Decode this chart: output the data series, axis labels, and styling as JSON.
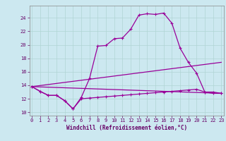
{
  "title": "",
  "xlabel": "Windchill (Refroidissement éolien,°C)",
  "bg_color": "#cce8f0",
  "grid_color": "#b0d4d4",
  "line_color": "#990099",
  "x_ticks": [
    0,
    1,
    2,
    3,
    4,
    5,
    6,
    7,
    8,
    9,
    10,
    11,
    12,
    13,
    14,
    15,
    16,
    17,
    18,
    19,
    20,
    21,
    22,
    23
  ],
  "y_ticks": [
    10,
    12,
    14,
    16,
    18,
    20,
    22,
    24
  ],
  "xlim": [
    -0.3,
    23.3
  ],
  "ylim": [
    9.5,
    25.8
  ],
  "line1_x": [
    0,
    1,
    2,
    3,
    4,
    5,
    6,
    7,
    8,
    9,
    10,
    11,
    12,
    13,
    14,
    15,
    16,
    17,
    18,
    19,
    20,
    21,
    22,
    23
  ],
  "line1_y": [
    13.8,
    13.1,
    12.5,
    12.5,
    11.7,
    10.5,
    12.2,
    15.0,
    19.8,
    19.9,
    20.9,
    21.0,
    22.3,
    24.4,
    24.6,
    24.5,
    24.7,
    23.2,
    19.5,
    17.4,
    15.8,
    13.0,
    13.0,
    12.8
  ],
  "line2_x": [
    0,
    23
  ],
  "line2_y": [
    13.8,
    12.8
  ],
  "line3_x": [
    0,
    23
  ],
  "line3_y": [
    13.8,
    17.4
  ],
  "line4_x": [
    0,
    1,
    2,
    3,
    4,
    5,
    6,
    7,
    8,
    9,
    10,
    11,
    12,
    13,
    14,
    15,
    16,
    17,
    18,
    19,
    20,
    21,
    22,
    23
  ],
  "line4_y": [
    13.8,
    13.1,
    12.5,
    12.5,
    11.7,
    10.5,
    12.0,
    12.1,
    12.2,
    12.3,
    12.4,
    12.5,
    12.6,
    12.7,
    12.8,
    12.9,
    13.0,
    13.1,
    13.2,
    13.3,
    13.4,
    13.0,
    12.8,
    12.8
  ]
}
